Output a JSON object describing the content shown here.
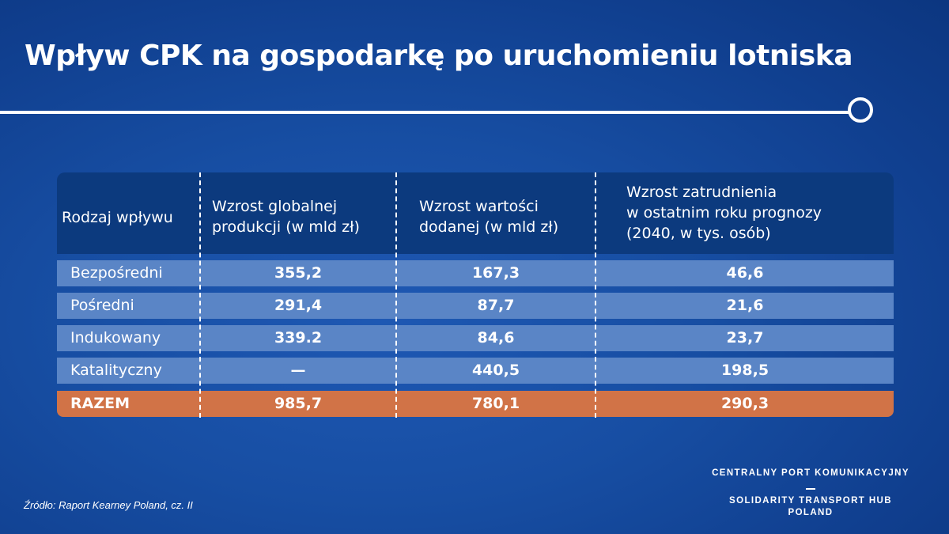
{
  "title": "Wpływ CPK na gospodarkę po uruchomieniu lotniska",
  "chart_data": {
    "type": "table",
    "headers": [
      "Rodzaj wpływu",
      [
        "Wzrost globalnej",
        "produkcji (w mld zł)"
      ],
      [
        "Wzrost wartości",
        "dodanej (w mld zł)"
      ],
      [
        "Wzrost zatrudnienia",
        "w ostatnim roku prognozy",
        "(2040, w tys. osób)"
      ]
    ],
    "rows": [
      {
        "label": "Bezpośredni",
        "values": [
          "355,2",
          "167,3",
          "46,6"
        ]
      },
      {
        "label": "Pośredni",
        "values": [
          "291,4",
          "87,7",
          "21,6"
        ]
      },
      {
        "label": "Indukowany",
        "values": [
          "339.2",
          "84,6",
          "23,7"
        ]
      },
      {
        "label": "Katalityczny",
        "values": [
          "—",
          "440,5",
          "198,5"
        ]
      }
    ],
    "total": {
      "label": "RAZEM",
      "values": [
        "985,7",
        "780,1",
        "290,3"
      ]
    }
  },
  "source": "Źródło: Raport Kearney Poland, cz. II",
  "brand": {
    "line1": "CENTRALNY PORT KOMUNIKACYJNY",
    "line2": "SOLIDARITY TRANSPORT HUB",
    "line3": "POLAND"
  },
  "colors": {
    "header_bg": "#0c3a7e",
    "row_bg": "#5a85c6",
    "total_bg": "#d17347",
    "text": "#ffffff"
  }
}
